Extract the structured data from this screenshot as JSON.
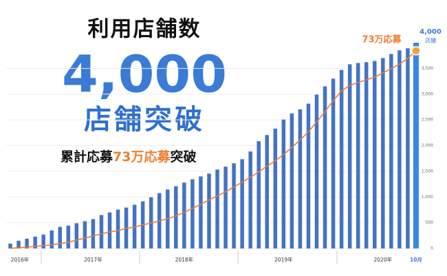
{
  "chart_data": {
    "type": "bar",
    "title": "利用店舗数",
    "headline": [
      "4,000",
      "店舗突破"
    ],
    "subtitle": [
      "累計応募",
      "73万応募",
      "突破"
    ],
    "annotations": [
      "4,000",
      "店舗",
      "73万応募"
    ],
    "categories": [
      "2016年",
      null,
      null,
      null,
      null,
      null,
      null,
      null,
      null,
      null,
      "2017年",
      null,
      null,
      null,
      null,
      null,
      null,
      null,
      null,
      null,
      null,
      "2018年",
      null,
      null,
      null,
      null,
      null,
      null,
      null,
      null,
      null,
      null,
      null,
      "2019年",
      null,
      null,
      null,
      null,
      null,
      null,
      null,
      null,
      null,
      null,
      null,
      "2020年",
      null,
      null,
      null,
      "10月"
    ],
    "series": [
      {
        "color": "#4472c4",
        "last_color": "#3a86e8",
        "values": [
          95,
          150,
          190,
          230,
          270,
          350,
          420,
          445,
          490,
          530,
          570,
          650,
          700,
          755,
          795,
          850,
          915,
          995,
          1075,
          1145,
          1210,
          1280,
          1345,
          1400,
          1455,
          1535,
          1590,
          1655,
          1735,
          1885,
          2085,
          2205,
          2330,
          2505,
          2625,
          2705,
          2815,
          2990,
          3150,
          3300,
          3470,
          3580,
          3605,
          3620,
          3645,
          3700,
          3780,
          3850,
          3890,
          4000
        ]
      },
      {
        "type": "line",
        "axis": "y2",
        "color": "#ed7d31",
        "values": [
          0,
          0.3,
          0.5,
          0.8,
          1.0,
          1.3,
          1.8,
          2.3,
          3.1,
          3.8,
          4.6,
          5.4,
          6.1,
          6.6,
          7.4,
          7.9,
          8.7,
          9.4,
          10.2,
          11.0,
          12.0,
          13.3,
          14.8,
          16.3,
          17.9,
          19.4,
          20.9,
          22.7,
          24.5,
          26.3,
          28.3,
          30.4,
          32.4,
          34.7,
          37.3,
          40.1,
          43.1,
          46.7,
          50.5,
          54.6,
          58.2,
          60.2,
          61.3,
          62.3,
          63.3,
          64.8,
          66.4,
          68.1,
          70.2,
          73
        ]
      }
    ],
    "ylim": [
      0,
      4000
    ],
    "yticks": [
      0,
      500,
      {
        "value": 1000,
        "label": "1,000"
      },
      {
        "value": 1500,
        "label": "1,500"
      },
      {
        "value": 2000,
        "label": "2,000"
      },
      {
        "value": 2500,
        "label": "2,500"
      },
      {
        "value": 3000,
        "label": "3,000"
      },
      {
        "value": 3500,
        "label": "3,500"
      }
    ],
    "y2lim": [
      0,
      76
    ],
    "grid": true
  }
}
